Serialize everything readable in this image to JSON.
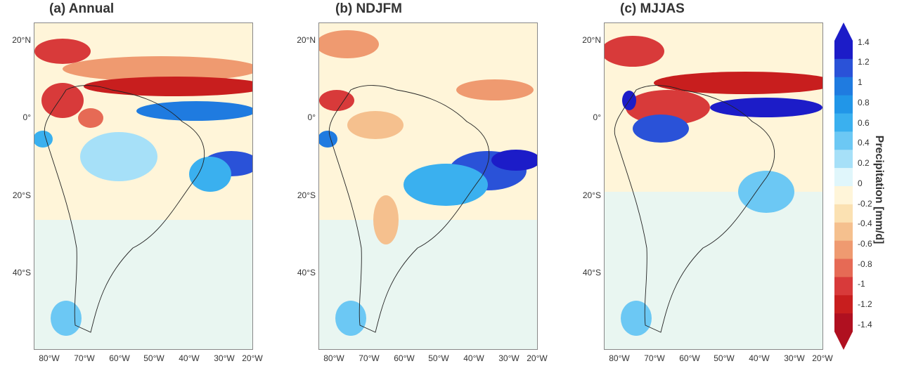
{
  "panels": [
    {
      "title": "(a) Annual"
    },
    {
      "title": "(b) NDJFM"
    },
    {
      "title": "(c) MJJAS"
    }
  ],
  "lat_labels": [
    "20°N",
    "0°",
    "20°S",
    "40°S"
  ],
  "lon_labels": [
    "80°W",
    "70°W",
    "60°W",
    "50°W",
    "40°W",
    "30°W",
    "20°W"
  ],
  "colorbar": {
    "title": "Precipitation [mm/d]",
    "ticks": [
      "1.4",
      "1.2",
      "1",
      "0.8",
      "0.6",
      "0.4",
      "0.2",
      "0",
      "-0.2",
      "-0.4",
      "-0.6",
      "-0.8",
      "-1",
      "-1.2",
      "-1.4"
    ],
    "colors": [
      "#1c1cc8",
      "#2a52d8",
      "#1f7be0",
      "#2196e8",
      "#3ab0ef",
      "#6cc8f4",
      "#a6e0f8",
      "#e0f6fb",
      "#fff5d9",
      "#fbe1b2",
      "#f5c08e",
      "#ef9a70",
      "#e66a55",
      "#d83a3a",
      "#c81e1e",
      "#b01020"
    ],
    "range": [
      -1.4,
      1.4
    ]
  }
}
